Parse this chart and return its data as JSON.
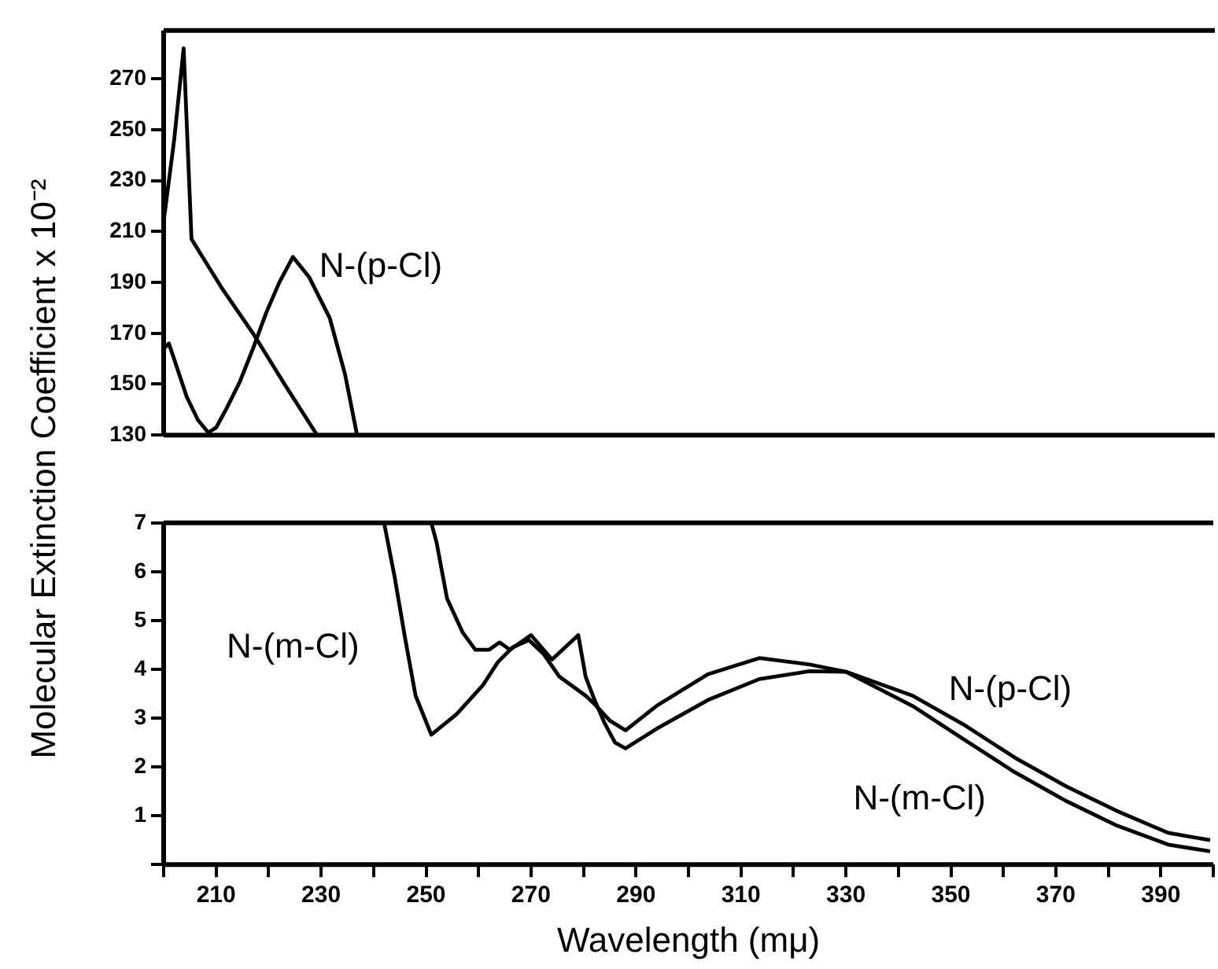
{
  "chart_data": [
    {
      "type": "line",
      "ylabel": "Molecular Extinction Coefficient x 10⁻²",
      "xlim": [
        200,
        400
      ],
      "ylim": [
        130,
        289
      ],
      "yticks": [
        130,
        150,
        170,
        190,
        210,
        230,
        250,
        270
      ],
      "tick_labels": "y",
      "series": [
        {
          "color": "#000000",
          "x": [
            200,
            201,
            204.4,
            206.5,
            208.5,
            210,
            212,
            214.5,
            217,
            219.5,
            222,
            224.6,
            227.7,
            231.6,
            234.5,
            236.8
          ],
          "values": [
            164,
            166,
            145,
            136,
            131,
            133,
            140.6,
            151,
            164,
            178,
            190,
            200,
            192,
            176,
            154,
            130
          ]
        },
        {
          "color": "#000000",
          "x": [
            200,
            202,
            203.8,
            205.3,
            211,
            217,
            223,
            229.2
          ],
          "values": [
            214,
            246,
            282,
            207,
            188,
            170,
            150,
            130
          ]
        }
      ],
      "annotations": [
        "N-(p-Cl)"
      ]
    },
    {
      "type": "line",
      "xlabel": "Wavelength (mμ)",
      "xlim": [
        200,
        400
      ],
      "ylim": [
        0,
        7
      ],
      "yticks": [
        {
          "value": 0,
          "label": null
        },
        1,
        2,
        3,
        4,
        5,
        6,
        7
      ],
      "xticks": [
        {
          "value": 200,
          "label": null
        },
        210,
        {
          "value": 220,
          "label": null
        },
        230,
        {
          "value": 240,
          "label": null
        },
        250,
        {
          "value": 260,
          "label": null
        },
        270,
        {
          "value": 280,
          "label": null
        },
        290,
        {
          "value": 300,
          "label": null
        },
        310,
        {
          "value": 320,
          "label": null
        },
        330,
        {
          "value": 340,
          "label": null
        },
        350,
        {
          "value": 360,
          "label": null
        },
        370,
        {
          "value": 380,
          "label": null
        },
        390,
        {
          "value": 400,
          "label": null
        }
      ],
      "series": [
        {
          "color": "#000000",
          "x": [
            251,
            252,
            254,
            257,
            259.4,
            262,
            264,
            266,
            270,
            272,
            274,
            276.5,
            279,
            280.4,
            282,
            284,
            286,
            288,
            293.9,
            303.7,
            313.5,
            323,
            330,
            342.7,
            352.4,
            362.2,
            372,
            381.6,
            391.4,
            399.4
          ],
          "values": [
            7,
            6.6,
            5.45,
            4.75,
            4.4,
            4.4,
            4.55,
            4.4,
            4.7,
            4.45,
            4.2,
            4.45,
            4.7,
            3.85,
            3.4,
            2.9,
            2.5,
            2.38,
            2.78,
            3.37,
            3.8,
            3.96,
            3.95,
            3.46,
            2.87,
            2.19,
            1.6,
            1.1,
            0.65,
            0.5
          ]
        },
        {
          "color": "#000000",
          "x": [
            242,
            244,
            246,
            248,
            251,
            255.8,
            260.8,
            263.7,
            266.5,
            269.6,
            272.5,
            275.4,
            280.4,
            282,
            285,
            288,
            293.9,
            303.7,
            313.5,
            323,
            330,
            342.7,
            352.4,
            362.2,
            372,
            381.6,
            391.4,
            399.4
          ],
          "values": [
            7,
            5.9,
            4.64,
            3.46,
            2.66,
            3.08,
            3.67,
            4.15,
            4.45,
            4.6,
            4.3,
            3.85,
            3.46,
            3.3,
            2.95,
            2.75,
            3.25,
            3.9,
            4.23,
            4.1,
            3.95,
            3.25,
            2.57,
            1.89,
            1.3,
            0.8,
            0.41,
            0.27
          ]
        }
      ],
      "annotations": [
        "N-(m-Cl)",
        "N-(p-Cl)",
        "N-(m-Cl)"
      ]
    }
  ]
}
